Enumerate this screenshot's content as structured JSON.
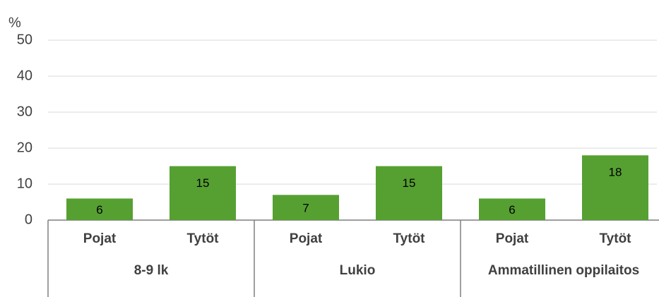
{
  "chart_data": {
    "type": "bar",
    "y_label": "%",
    "categories": [
      "Pojat",
      "Tytöt",
      "Pojat",
      "Tytöt",
      "Pojat",
      "Tytöt"
    ],
    "groups": [
      "8-9 lk",
      "Lukio",
      "Ammatillinen oppilaitos"
    ],
    "values": [
      6,
      15,
      7,
      15,
      6,
      18
    ],
    "color": "#56a032",
    "ylim": [
      0,
      50
    ],
    "yticks": [
      0,
      10,
      20,
      30,
      40,
      50
    ],
    "grid": true
  }
}
